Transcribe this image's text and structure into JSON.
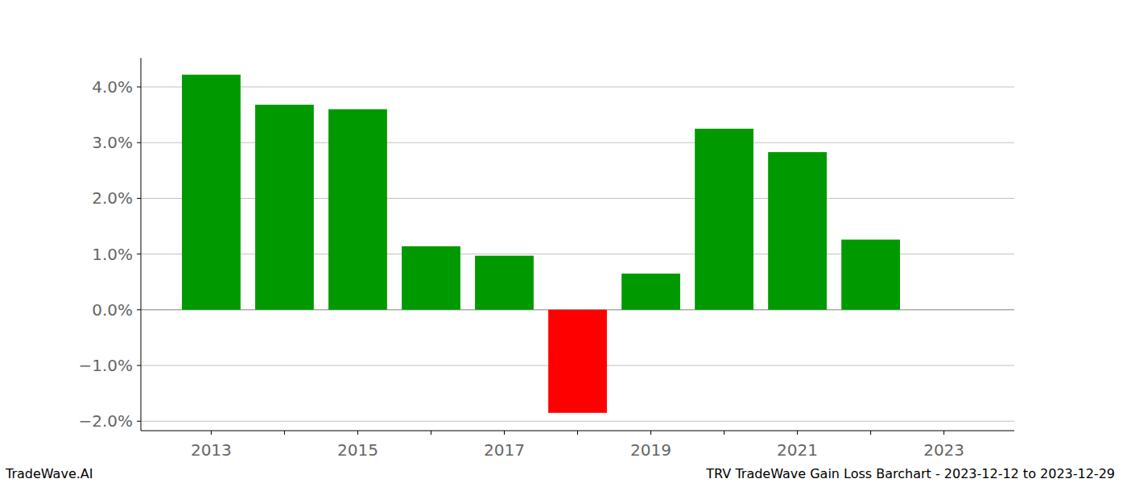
{
  "chart_data": {
    "type": "bar",
    "title": "TRV TradeWave Gain Loss Barchart - 2023-12-12 to 2023-12-29",
    "annotations": [
      "TradeWave.AI"
    ],
    "categories": [
      "2013",
      null,
      "2015",
      null,
      "2017",
      null,
      "2019",
      null,
      "2021",
      null,
      "2023"
    ],
    "values": [
      4.22,
      3.68,
      3.6,
      1.14,
      0.97,
      -1.85,
      0.65,
      3.25,
      2.83,
      1.26,
      null
    ],
    "colors": [
      "#009900",
      "#009900",
      "#009900",
      "#009900",
      "#009900",
      "#ff0000",
      "#009900",
      "#009900",
      "#009900",
      "#009900",
      null
    ],
    "ylim": [
      -2.17,
      4.52
    ],
    "yticks": [
      {
        "value": -2,
        "label": "−2.0%"
      },
      {
        "value": -1,
        "label": "−1.0%"
      },
      {
        "value": 0,
        "label": "0.0%"
      },
      {
        "value": 1,
        "label": "1.0%"
      },
      {
        "value": 2,
        "label": "2.0%"
      },
      {
        "value": 3,
        "label": "3.0%"
      },
      {
        "value": 4,
        "label": "4.0%"
      }
    ],
    "grid": true
  }
}
